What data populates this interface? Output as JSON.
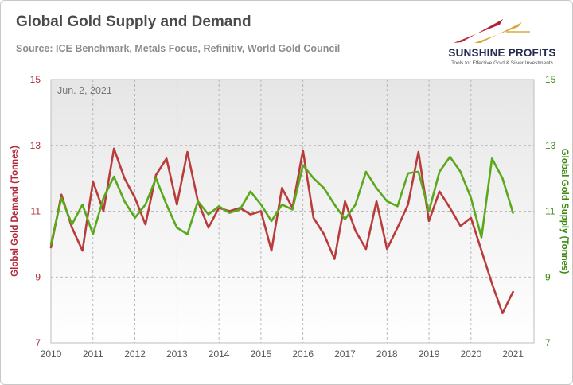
{
  "title": "Global Gold Supply and Demand",
  "subtitle": "Source: ICE Benchmark, Metals Focus, Refinitiv, World Gold Council",
  "logo": {
    "brand": "SUNSHINE PROFITS",
    "tagline": "Tools for Effective Gold & Silver Investments"
  },
  "colors": {
    "demand": "#b83c3c",
    "supply": "#5aa81c",
    "left_axis_text": "#b02a3a",
    "right_axis_text": "#3a8a10",
    "logo_red": "#b22234",
    "logo_gold": "#d9a33a"
  },
  "chart_data": {
    "type": "line",
    "date_label": "Jun. 2, 2021",
    "x_tick_labels": [
      "2010",
      "2011",
      "2012",
      "2013",
      "2014",
      "2015",
      "2016",
      "2017",
      "2018",
      "2019",
      "2020",
      "2021"
    ],
    "xlim": [
      2010.0,
      2021.5
    ],
    "ylabel_left": "Global Gold Demand (Tonnes)",
    "ylabel_right": "Global Gold Supply (Tonnes)",
    "ylim_left": [
      7,
      15
    ],
    "ylim_right": [
      7,
      15
    ],
    "y_ticks_left": [
      "15",
      "13",
      "11",
      "9",
      "7"
    ],
    "y_ticks_right": [
      "15",
      "13",
      "11",
      "9",
      "7"
    ],
    "grid": true,
    "x": [
      "2010-Q1",
      "2010-Q2",
      "2010-Q3",
      "2010-Q4",
      "2011-Q1",
      "2011-Q2",
      "2011-Q3",
      "2011-Q4",
      "2012-Q1",
      "2012-Q2",
      "2012-Q3",
      "2012-Q4",
      "2013-Q1",
      "2013-Q2",
      "2013-Q3",
      "2013-Q4",
      "2014-Q1",
      "2014-Q2",
      "2014-Q3",
      "2014-Q4",
      "2015-Q1",
      "2015-Q2",
      "2015-Q3",
      "2015-Q4",
      "2016-Q1",
      "2016-Q2",
      "2016-Q3",
      "2016-Q4",
      "2017-Q1",
      "2017-Q2",
      "2017-Q3",
      "2017-Q4",
      "2018-Q1",
      "2018-Q2",
      "2018-Q3",
      "2018-Q4",
      "2019-Q1",
      "2019-Q2",
      "2019-Q3",
      "2019-Q4",
      "2020-Q1",
      "2020-Q2",
      "2020-Q3",
      "2020-Q4",
      "2021-Q1"
    ],
    "series": [
      {
        "name": "Global Gold Demand (Tonnes)",
        "axis": "left",
        "values": [
          9.9,
          11.5,
          10.5,
          9.8,
          11.9,
          11.0,
          12.9,
          12.0,
          11.4,
          10.6,
          12.1,
          12.6,
          11.2,
          12.8,
          11.3,
          10.5,
          11.1,
          11.0,
          11.1,
          10.9,
          11.0,
          9.8,
          11.7,
          11.1,
          12.85,
          10.8,
          10.3,
          9.55,
          11.3,
          10.4,
          9.85,
          11.3,
          9.85,
          10.5,
          11.2,
          12.8,
          10.7,
          11.6,
          11.1,
          10.55,
          10.8,
          9.8,
          8.8,
          7.9,
          8.55
        ]
      },
      {
        "name": "Global Gold Supply (Tonnes)",
        "axis": "right",
        "values": [
          10.0,
          11.4,
          10.6,
          11.2,
          10.3,
          11.4,
          12.05,
          11.3,
          10.8,
          11.2,
          12.0,
          11.2,
          10.5,
          10.3,
          11.3,
          10.9,
          11.15,
          10.95,
          11.05,
          11.6,
          11.2,
          10.7,
          11.2,
          11.05,
          12.4,
          12.0,
          11.7,
          11.2,
          10.75,
          11.2,
          12.2,
          11.7,
          11.3,
          11.15,
          12.15,
          12.2,
          11.0,
          12.2,
          12.65,
          12.2,
          11.4,
          10.2,
          12.6,
          12.0,
          10.95
        ]
      }
    ]
  }
}
